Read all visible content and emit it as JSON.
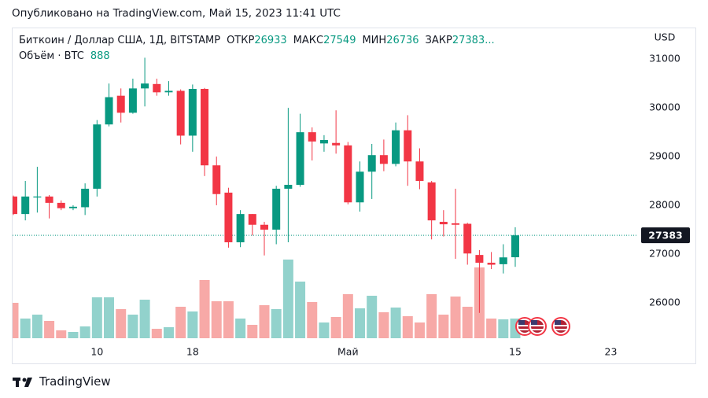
{
  "chart_data": {
    "type": "candlestick",
    "published": "Опубликовано на TradingView.com, Май 15, 2023 11:41 UTC",
    "symbol": "Биткоин / Доллар США, 1Д, BITSTAMP",
    "ohlc_labels": [
      "ОТКР",
      "МАКС",
      "МИН",
      "ЗАКР"
    ],
    "overflow": "...",
    "volume_label": "Объём · BTC",
    "currency": "USD",
    "brand": "TradingView",
    "up_color": "#089981",
    "down_color": "#f23645",
    "up_volume_color": "#92d2cc",
    "down_volume_color": "#f7a9a7",
    "x": [
      "2023-04-03",
      "2023-04-04",
      "2023-04-05",
      "2023-04-06",
      "2023-04-07",
      "2023-04-08",
      "2023-04-09",
      "2023-04-10",
      "2023-04-11",
      "2023-04-12",
      "2023-04-13",
      "2023-04-14",
      "2023-04-15",
      "2023-04-16",
      "2023-04-17",
      "2023-04-18",
      "2023-04-19",
      "2023-04-20",
      "2023-04-21",
      "2023-04-22",
      "2023-04-23",
      "2023-04-24",
      "2023-04-25",
      "2023-04-26",
      "2023-04-27",
      "2023-04-28",
      "2023-04-29",
      "2023-04-30",
      "2023-05-01",
      "2023-05-02",
      "2023-05-03",
      "2023-05-04",
      "2023-05-05",
      "2023-05-06",
      "2023-05-07",
      "2023-05-08",
      "2023-05-09",
      "2023-05-10",
      "2023-05-11",
      "2023-05-12",
      "2023-05-13",
      "2023-05-14",
      "2023-05-15"
    ],
    "open": [
      28180,
      27820,
      28160,
      28180,
      28050,
      27940,
      27960,
      28340,
      29660,
      30250,
      29900,
      30400,
      30490,
      30320,
      30350,
      29430,
      30390,
      28820,
      28260,
      27240,
      27820,
      27600,
      27500,
      28340,
      28420,
      29500,
      29270,
      29280,
      29230,
      28060,
      28690,
      29030,
      28850,
      29540,
      28900,
      28470,
      27660,
      27630,
      27620,
      26980,
      26820,
      26790,
      26933
    ],
    "high": [
      28200,
      28500,
      28790,
      28210,
      28100,
      28000,
      28450,
      29750,
      30500,
      30400,
      30600,
      31030,
      30600,
      30550,
      30380,
      30480,
      30410,
      29000,
      28360,
      27900,
      27820,
      27660,
      28400,
      30000,
      29880,
      29600,
      29440,
      29950,
      29300,
      28900,
      29260,
      29350,
      29700,
      29850,
      29170,
      28500,
      27900,
      28340,
      27640,
      27080,
      27040,
      27200,
      27549
    ],
    "low": [
      27800,
      27690,
      27850,
      27730,
      27900,
      27900,
      27800,
      28180,
      29620,
      29700,
      29880,
      30030,
      30250,
      30250,
      29250,
      29100,
      28600,
      28000,
      27130,
      27140,
      27380,
      26970,
      27200,
      27240,
      28380,
      28920,
      29100,
      29060,
      28020,
      27870,
      28130,
      28700,
      28800,
      28400,
      28330,
      27300,
      27360,
      26900,
      26780,
      25790,
      26690,
      26600,
      26736
    ],
    "close": [
      27820,
      28180,
      28180,
      28050,
      27940,
      27970,
      28340,
      29660,
      30220,
      29900,
      30400,
      30500,
      30320,
      30350,
      29430,
      30390,
      28820,
      28230,
      27240,
      27820,
      27600,
      27500,
      28340,
      28420,
      29500,
      29310,
      29340,
      29230,
      28060,
      28690,
      29030,
      28850,
      29540,
      28900,
      28500,
      27690,
      27610,
      27600,
      27010,
      26820,
      26780,
      26930,
      27383
    ],
    "volume": [
      1598,
      888,
      1065,
      781,
      355,
      284,
      533,
      1846,
      1846,
      1314,
      1065,
      1740,
      426,
      497,
      1420,
      1207,
      2627,
      1669,
      1669,
      888,
      604,
      1491,
      1314,
      3550,
      2556,
      1633,
      710,
      959,
      1988,
      1349,
      1917,
      1172,
      1385,
      994,
      710,
      1988,
      1065,
      1882,
      1420,
      3195,
      888,
      852,
      888
    ],
    "ylim": [
      25270,
      31650
    ],
    "yticks": [
      26000,
      27000,
      28000,
      29000,
      30000,
      31000
    ],
    "xticks": [
      {
        "value": "2023-04-10",
        "label": "10"
      },
      {
        "value": "2023-04-18",
        "label": "18"
      },
      {
        "value": "2023-05-01",
        "label": "Май"
      },
      {
        "value": "2023-05-15",
        "label": "15"
      },
      {
        "value": "2023-05-23",
        "label": "23"
      }
    ]
  }
}
